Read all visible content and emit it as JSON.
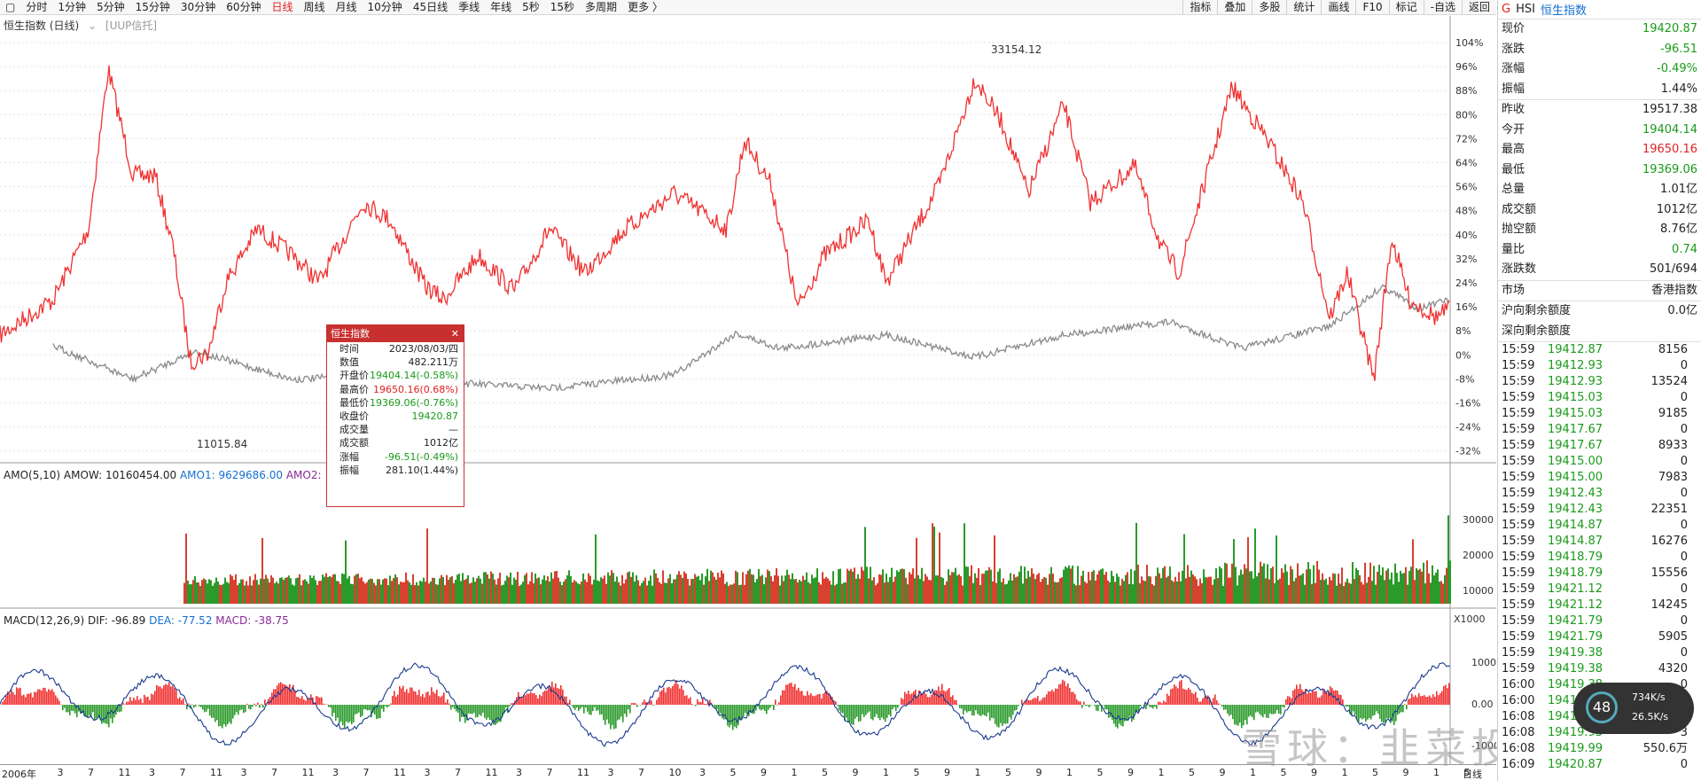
{
  "topbar": {
    "periods": [
      "分时",
      "1分钟",
      "5分钟",
      "15分钟",
      "30分钟",
      "60分钟",
      "日线",
      "周线",
      "月线",
      "10分钟",
      "45日线",
      "季线",
      "年线",
      "5秒",
      "15秒",
      "多周期",
      "更多 〉"
    ],
    "active": "日线",
    "tools": [
      "指标",
      "叠加",
      "多股",
      "统计",
      "画线",
      "F10",
      "标记",
      "-自选",
      "返回"
    ]
  },
  "chart": {
    "title": "恒生指数 (日线)",
    "overlay": "[UUP信托]",
    "high_label": "33154.12",
    "low_label": "11015.84",
    "y_ticks": [
      "104%",
      "96%",
      "88%",
      "80%",
      "72%",
      "64%",
      "56%",
      "48%",
      "40%",
      "32%",
      "24%",
      "16%",
      "8%",
      "0%",
      "-8%",
      "-16%",
      "-24%",
      "-32%"
    ]
  },
  "amo": {
    "label": "AMO(5,10)",
    "amow": "AMOW: 10160454.00",
    "amo1": "AMO1: 9629686.00",
    "amo2": "AMO2:",
    "ticks": [
      "30000",
      "20000",
      "10000"
    ],
    "unit": "X1000"
  },
  "macd": {
    "label": "MACD(12,26,9)",
    "dif": "DIF: -96.89",
    "dea": "DEA: -77.52",
    "macd": "MACD: -38.75",
    "ticks": [
      "1000",
      "0.00",
      "-1000"
    ]
  },
  "xaxis": {
    "labels": [
      "2006年",
      "3",
      "7",
      "11",
      "3",
      "7",
      "11",
      "3",
      "7",
      "11",
      "3",
      "7",
      "11",
      "3",
      "7",
      "11",
      "3",
      "7",
      "11",
      "3",
      "7",
      "10",
      "3",
      "5",
      "9",
      "1",
      "5",
      "9",
      "1",
      "5",
      "9",
      "1",
      "5",
      "9",
      "1",
      "5",
      "9",
      "1",
      "5",
      "9",
      "1",
      "5",
      "9",
      "1",
      "5",
      "9",
      "1",
      "5"
    ],
    "end": "日线"
  },
  "tooltip": {
    "title": "恒生指数",
    "close": "✕",
    "rows": [
      [
        "时间",
        "2023/08/03/四",
        ""
      ],
      [
        "数值",
        "482.211万",
        ""
      ],
      [
        "开盘价",
        "19404.14(-0.58%)",
        "gr"
      ],
      [
        "最高价",
        "19650.16(0.68%)",
        "r"
      ],
      [
        "最低价",
        "19369.06(-0.76%)",
        "gr"
      ],
      [
        "收盘价",
        "19420.87",
        "gr"
      ],
      [
        "成交量",
        "—",
        ""
      ],
      [
        "成交额",
        "1012亿",
        ""
      ],
      [
        "涨幅",
        "-96.51(-0.49%)",
        "gr"
      ],
      [
        "振幅",
        "281.10(1.44%)",
        ""
      ]
    ]
  },
  "panel": {
    "g": "G",
    "code": "HSI",
    "name": "恒生指数",
    "quote": [
      [
        "现价",
        "19420.87",
        "green"
      ],
      [
        "涨跌",
        "-96.51",
        "green"
      ],
      [
        "涨幅",
        "-0.49%",
        "green"
      ],
      [
        "振幅",
        "1.44%",
        ""
      ]
    ],
    "detail": [
      [
        "昨收",
        "19517.38",
        ""
      ],
      [
        "今开",
        "19404.14",
        "green"
      ],
      [
        "最高",
        "19650.16",
        "red"
      ],
      [
        "最低",
        "19369.06",
        "green"
      ],
      [
        "总量",
        "1.01亿",
        ""
      ],
      [
        "成交额",
        "1012亿",
        ""
      ],
      [
        "抛空额",
        "8.76亿",
        ""
      ],
      [
        "量比",
        "0.74",
        "green"
      ],
      [
        "涨跌数",
        "501/694",
        ""
      ]
    ],
    "market": [
      [
        "市场",
        "香港指数"
      ]
    ],
    "flow": [
      [
        "沪向剩余额度",
        "0.0亿"
      ],
      [
        "深向剩余额度",
        ""
      ]
    ],
    "ticks": [
      [
        "15:59",
        "19412.87",
        "8156"
      ],
      [
        "15:59",
        "19412.93",
        "0"
      ],
      [
        "15:59",
        "19412.93",
        "13524"
      ],
      [
        "15:59",
        "19415.03",
        "0"
      ],
      [
        "15:59",
        "19415.03",
        "9185"
      ],
      [
        "15:59",
        "19417.67",
        "0"
      ],
      [
        "15:59",
        "19417.67",
        "8933"
      ],
      [
        "15:59",
        "19415.00",
        "0"
      ],
      [
        "15:59",
        "19415.00",
        "7983"
      ],
      [
        "15:59",
        "19412.43",
        "0"
      ],
      [
        "15:59",
        "19412.43",
        "22351"
      ],
      [
        "15:59",
        "19414.87",
        "0"
      ],
      [
        "15:59",
        "19414.87",
        "16276"
      ],
      [
        "15:59",
        "19418.79",
        "0"
      ],
      [
        "15:59",
        "19418.79",
        "15556"
      ],
      [
        "15:59",
        "19421.12",
        "0"
      ],
      [
        "15:59",
        "19421.12",
        "14245"
      ],
      [
        "15:59",
        "19421.79",
        "0"
      ],
      [
        "15:59",
        "19421.79",
        "5905"
      ],
      [
        "15:59",
        "19419.38",
        "0"
      ],
      [
        "15:59",
        "19419.38",
        "4320"
      ],
      [
        "16:00",
        "19419.38",
        "0"
      ],
      [
        "16:00",
        "19419.38",
        ""
      ],
      [
        "16:08",
        "19419.99",
        ""
      ],
      [
        "16:08",
        "19419.93",
        "3"
      ],
      [
        "16:08",
        "19419.99",
        "550.6万"
      ],
      [
        "16:09",
        "19420.87",
        "0"
      ]
    ]
  },
  "watermark": "雪球：韭菜投研",
  "speed": {
    "num": "48",
    "up": "734K/s",
    "down": "26.5K/s"
  }
}
